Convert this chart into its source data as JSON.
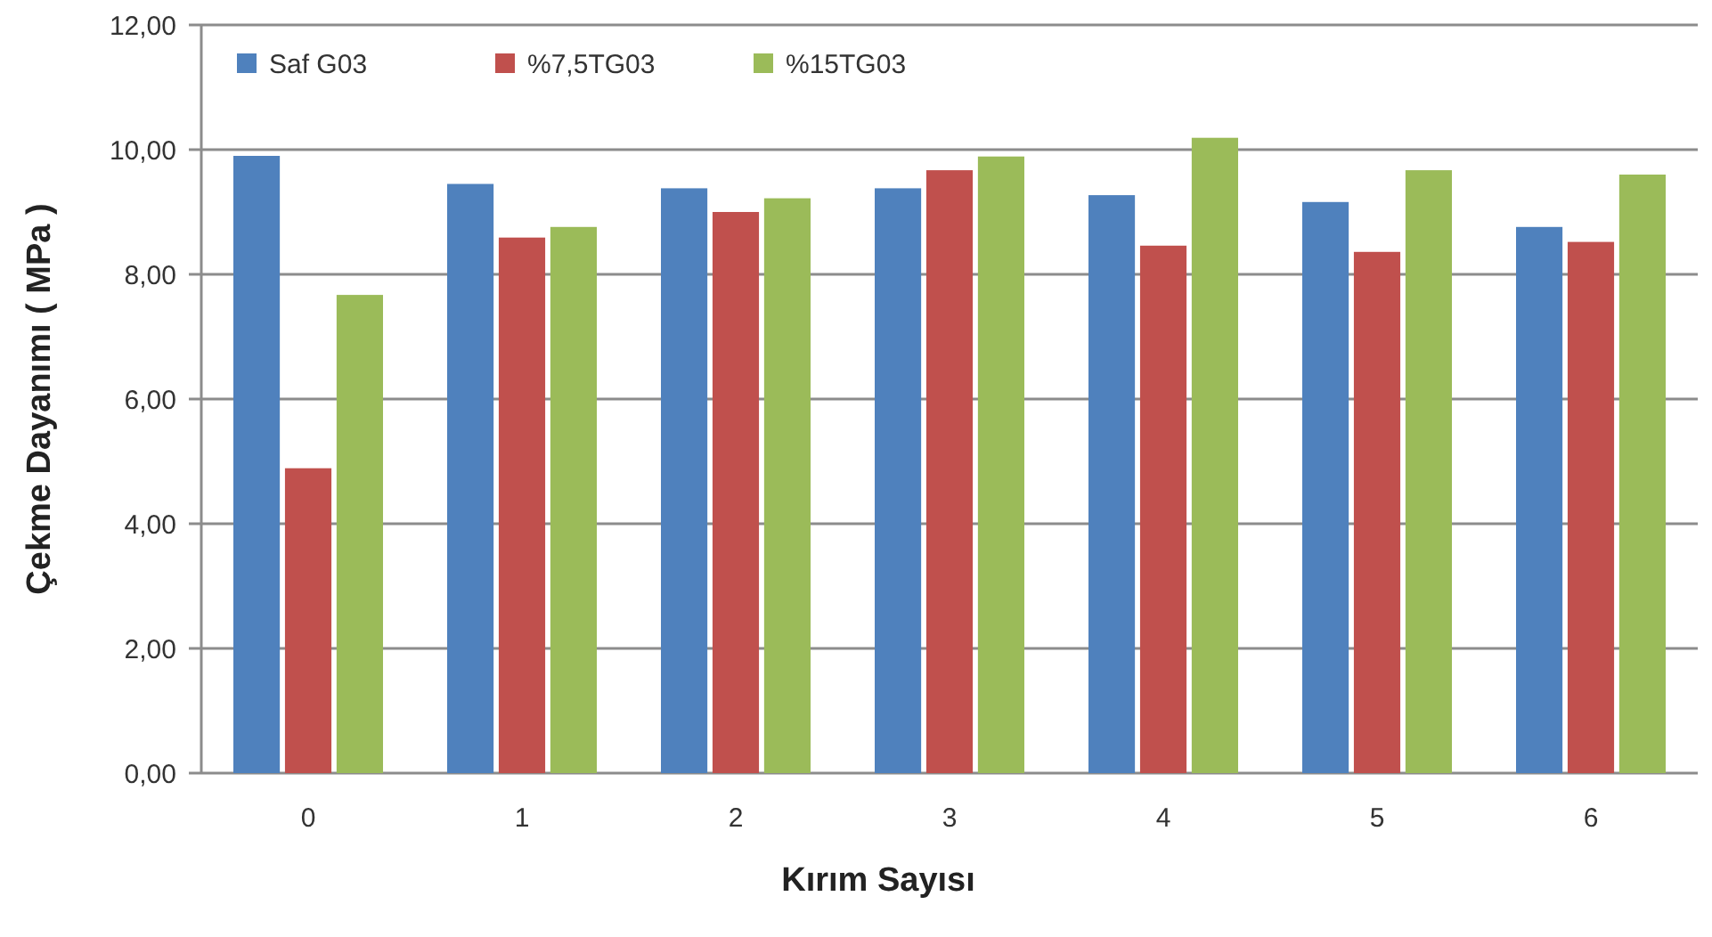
{
  "chart_data": {
    "type": "bar",
    "xlabel": "Kırım Sayısı",
    "ylabel": "Çekme Dayanımı ( MPa )",
    "categories": [
      "0",
      "1",
      "2",
      "3",
      "4",
      "5",
      "6"
    ],
    "series": [
      {
        "name": "Saf G03",
        "color": "#4f81bd",
        "values": [
          9.9,
          9.45,
          9.38,
          9.38,
          9.27,
          9.16,
          8.76
        ]
      },
      {
        "name": "%7,5TG03",
        "color": "#c0504d",
        "values": [
          4.89,
          8.59,
          9.0,
          9.67,
          8.46,
          8.36,
          8.52
        ]
      },
      {
        "name": "%15TG03",
        "color": "#9bbb59",
        "values": [
          7.67,
          8.76,
          9.22,
          9.89,
          10.19,
          9.67,
          9.6
        ]
      }
    ],
    "ylim": [
      0,
      12
    ],
    "yticks": [
      {
        "value": 0,
        "label": "0,00"
      },
      {
        "value": 2,
        "label": "2,00"
      },
      {
        "value": 4,
        "label": "4,00"
      },
      {
        "value": 6,
        "label": "6,00"
      },
      {
        "value": 8,
        "label": "8,00"
      },
      {
        "value": 10,
        "label": "10,00"
      },
      {
        "value": 12,
        "label": "12,00"
      }
    ],
    "grid": "y",
    "legend": "top left"
  }
}
